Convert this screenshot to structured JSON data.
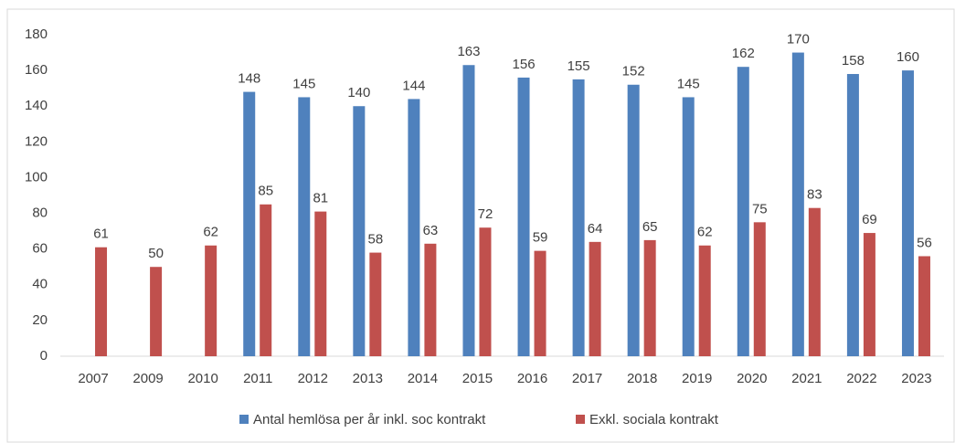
{
  "chart_data": {
    "type": "bar",
    "categories": [
      "2007",
      "2009",
      "2010",
      "2011",
      "2012",
      "2013",
      "2014",
      "2015",
      "2016",
      "2017",
      "2018",
      "2019",
      "2020",
      "2021",
      "2022",
      "2023"
    ],
    "series": [
      {
        "name": "Antal hemlösa per år inkl. soc kontrakt",
        "color": "#4f81bd",
        "values": [
          null,
          null,
          null,
          148,
          145,
          140,
          144,
          163,
          156,
          155,
          152,
          145,
          162,
          170,
          158,
          160
        ]
      },
      {
        "name": "Exkl. sociala kontrakt",
        "color": "#c0504d",
        "values": [
          61,
          50,
          62,
          85,
          81,
          58,
          63,
          72,
          59,
          64,
          65,
          62,
          75,
          83,
          69,
          56
        ]
      }
    ],
    "ylim": [
      0,
      180
    ],
    "yticks": [
      0,
      20,
      40,
      60,
      80,
      100,
      120,
      140,
      160,
      180
    ],
    "grid": false,
    "legend": "bottom"
  }
}
